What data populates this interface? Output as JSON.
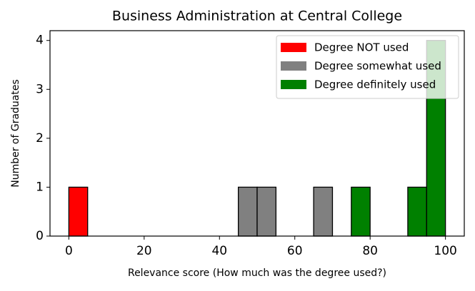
{
  "chart_data": {
    "type": "histogram",
    "title": "Business Administration at Central College",
    "x_label": "Relevance score (How much was the degree used?)",
    "y_label": "Number of Graduates",
    "bins": [
      0,
      5,
      10,
      15,
      20,
      25,
      30,
      35,
      40,
      45,
      50,
      55,
      60,
      65,
      70,
      75,
      80,
      85,
      90,
      95,
      100
    ],
    "series": [
      {
        "name": "Degree NOT used",
        "color": "#ff0000",
        "values": [
          1,
          0,
          0,
          0,
          0,
          0,
          0,
          0,
          0,
          0,
          0,
          0,
          0,
          0,
          0,
          0,
          0,
          0,
          0,
          0
        ]
      },
      {
        "name": "Degree somewhat used",
        "color": "#808080",
        "values": [
          0,
          0,
          0,
          0,
          0,
          0,
          0,
          0,
          0,
          1,
          1,
          0,
          0,
          1,
          0,
          0,
          0,
          0,
          0,
          0
        ]
      },
      {
        "name": "Degree definitely used",
        "color": "#008000",
        "values": [
          0,
          0,
          0,
          0,
          0,
          0,
          0,
          0,
          0,
          0,
          0,
          0,
          0,
          0,
          0,
          1,
          0,
          0,
          1,
          4
        ]
      }
    ],
    "xlim": [
      -5,
      105
    ],
    "ylim": [
      0,
      4.2
    ],
    "xticks": [
      0,
      20,
      40,
      60,
      80,
      100
    ],
    "yticks": [
      0,
      1,
      2,
      3,
      4
    ],
    "legend": "upper right"
  }
}
